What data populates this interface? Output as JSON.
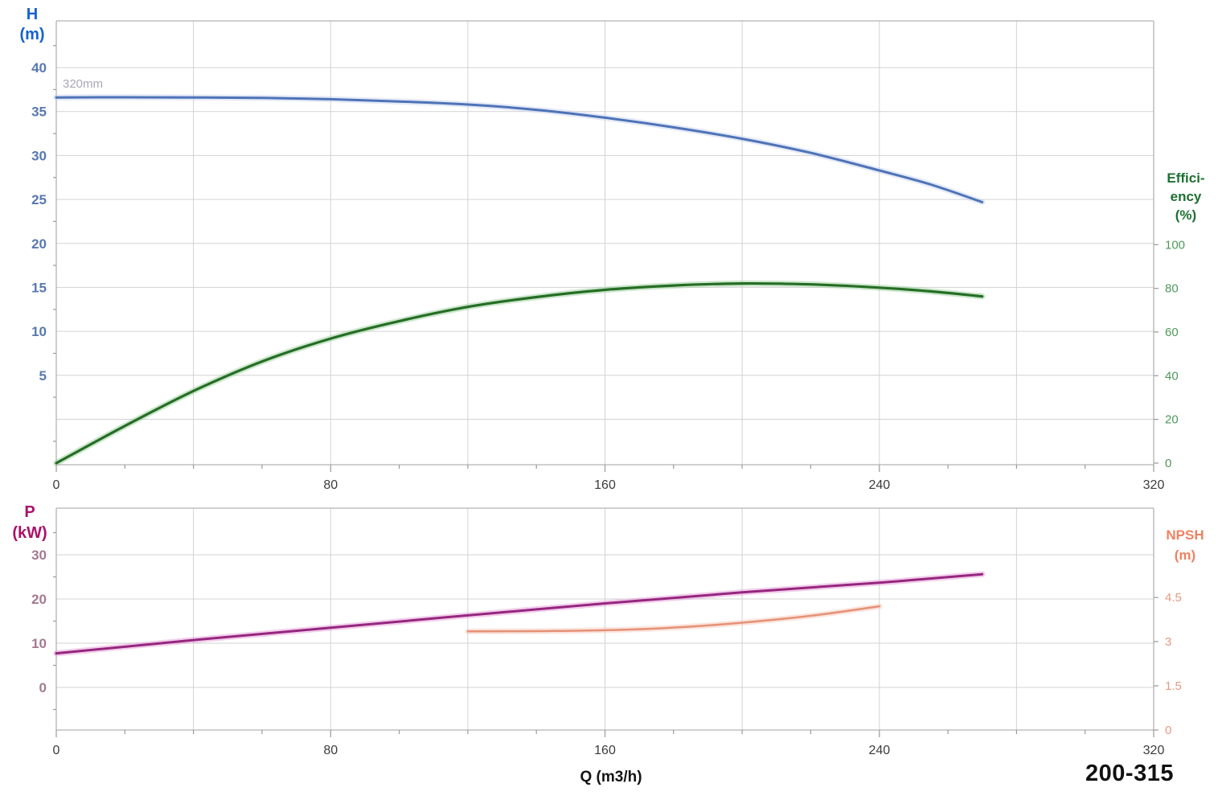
{
  "labels": {
    "h_axis_title": "H\n(m)",
    "efficiency_axis_title": "Effici-\nency\n(%)",
    "p_axis_title": "P\n(kW)",
    "npsh_axis_title": "NPSH\n(m)",
    "impeller_label": "320mm",
    "x_axis_title": "Q (m3/h)",
    "model_label": "200-315"
  },
  "theme": {
    "background": "#ffffff",
    "gridline": "#d3d3d3",
    "frame": "#b3b3b3",
    "tick": "#9a9a9a"
  },
  "chart_data": [
    {
      "name": "head-and-efficiency-vs-flow",
      "type": "line",
      "title": "",
      "xlabel": "Q (m3/h)",
      "x_axis": {
        "min": 0,
        "max": 320,
        "major_tick_step": 80,
        "minor_tick_step": 20,
        "gridline_step": 40,
        "tick_labels": [
          0,
          80,
          160,
          240,
          320
        ],
        "tick_label_color": "#3c3c3c",
        "show_labels": true
      },
      "left_axis": {
        "name": "Head",
        "unit": "m",
        "min": -5.17,
        "max": 45.31,
        "gridline_values": [
          0,
          5,
          10,
          15,
          20,
          25,
          30,
          35,
          40
        ],
        "tick_labels": [
          5,
          10,
          15,
          20,
          25,
          30,
          35,
          40
        ],
        "minor_ticks": [
          -2.5,
          2.5,
          7.5,
          12.5,
          17.5,
          22.5,
          27.5,
          32.5,
          37.5,
          42.5
        ],
        "tick_label_color": "#5878b0"
      },
      "right_axis": {
        "name": "Efficiency",
        "unit": "%",
        "min": -0.74,
        "max": 202.4,
        "tick_labels": [
          0,
          20,
          40,
          60,
          80,
          100
        ],
        "tick_label_color": "#4d9959"
      },
      "series": [
        {
          "name": "head-curve-320mm",
          "label": "320mm",
          "axis": "left",
          "color": "#4e73b8",
          "halo": "#c3d0ec",
          "width": 3,
          "points": [
            [
              0,
              36.6
            ],
            [
              20,
              36.62
            ],
            [
              40,
              36.6
            ],
            [
              60,
              36.55
            ],
            [
              80,
              36.4
            ],
            [
              100,
              36.15
            ],
            [
              120,
              35.8
            ],
            [
              140,
              35.2
            ],
            [
              160,
              34.3
            ],
            [
              180,
              33.2
            ],
            [
              200,
              31.9
            ],
            [
              220,
              30.3
            ],
            [
              240,
              28.3
            ],
            [
              255,
              26.7
            ],
            [
              270,
              24.7
            ]
          ]
        },
        {
          "name": "efficiency-curve",
          "label": "Efficiency",
          "axis": "right",
          "color": "#256e25",
          "halo": "#93ca93",
          "width": 3.2,
          "points": [
            [
              0,
              0
            ],
            [
              20,
              17
            ],
            [
              40,
              33
            ],
            [
              60,
              46.5
            ],
            [
              80,
              57
            ],
            [
              100,
              65
            ],
            [
              120,
              71.5
            ],
            [
              140,
              76
            ],
            [
              160,
              79.3
            ],
            [
              180,
              81.3
            ],
            [
              200,
              82.2
            ],
            [
              220,
              81.8
            ],
            [
              240,
              80.3
            ],
            [
              255,
              78.6
            ],
            [
              270,
              76.3
            ]
          ]
        }
      ]
    },
    {
      "name": "power-and-npsh-vs-flow",
      "type": "line",
      "title": "",
      "xlabel": "Q (m3/h)",
      "x_axis": {
        "min": 0,
        "max": 320,
        "major_tick_step": 80,
        "minor_tick_step": 20,
        "gridline_step": 40,
        "tick_labels": [
          0,
          80,
          160,
          240,
          320
        ],
        "tick_label_color": "#3c3c3c",
        "show_labels": true
      },
      "left_axis": {
        "name": "Power",
        "unit": "kW",
        "min": -9.64,
        "max": 40.55,
        "gridline_values": [
          0,
          10,
          20,
          30
        ],
        "tick_labels": [
          0,
          10,
          20,
          30
        ],
        "minor_ticks": [
          -5,
          5,
          15,
          25,
          35
        ],
        "tick_label_color": "#a3798f"
      },
      "right_axis": {
        "name": "NPSH",
        "unit": "m",
        "min": 0,
        "max": 7.53,
        "tick_labels": [
          0,
          1.5,
          3,
          4.5
        ],
        "tick_label_color": "#e49a83"
      },
      "series": [
        {
          "name": "power-curve",
          "label": "P",
          "axis": "left",
          "color": "#96267f",
          "halo": "#e293d2",
          "width": 3,
          "points": [
            [
              0,
              7.7
            ],
            [
              40,
              10.7
            ],
            [
              80,
              13.5
            ],
            [
              120,
              16.3
            ],
            [
              160,
              19.0
            ],
            [
              200,
              21.5
            ],
            [
              240,
              23.7
            ],
            [
              270,
              25.6
            ]
          ]
        },
        {
          "name": "npsh-curve",
          "label": "NPSH",
          "axis": "right",
          "color": "#e59176",
          "halo": "#f3c4b4",
          "width": 2.5,
          "points": [
            [
              120,
              3.35
            ],
            [
              145,
              3.36
            ],
            [
              170,
              3.42
            ],
            [
              190,
              3.55
            ],
            [
              210,
              3.75
            ],
            [
              225,
              3.95
            ],
            [
              240,
              4.2
            ]
          ]
        }
      ]
    }
  ]
}
